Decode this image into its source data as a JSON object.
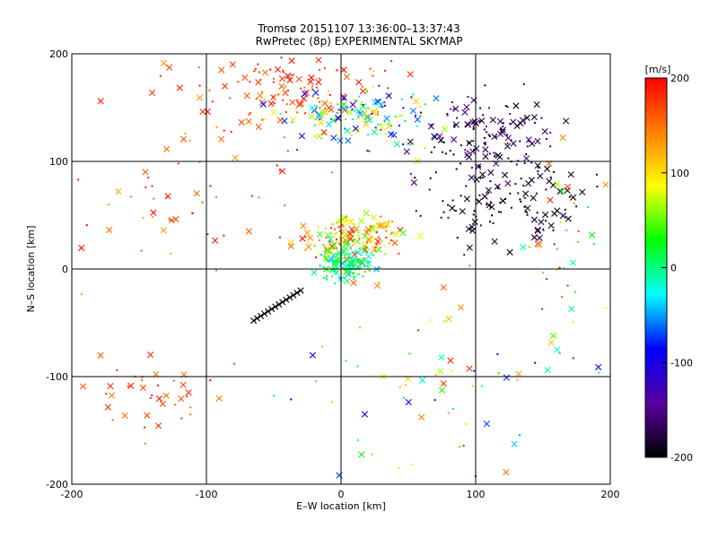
{
  "chart_data": {
    "type": "scatter",
    "title": "Tromsø 20151107 13:36:00–13:37:43",
    "subtitle": "RwPretec (8p) EXPERIMENTAL SKYMAP",
    "xlabel": "E–W location [km]",
    "ylabel": "N–S location [km]",
    "xlim": [
      -200,
      200
    ],
    "ylim": [
      -200,
      200
    ],
    "xticks": [
      -200,
      -100,
      0,
      100,
      200
    ],
    "yticks": [
      -200,
      -100,
      0,
      100,
      200
    ],
    "grid": true,
    "markers": {
      "small": "dot",
      "large": "x"
    },
    "colorbar": {
      "label": "[m/s]",
      "min": -200,
      "max": 200,
      "ticks": [
        -200,
        -100,
        0,
        100,
        200
      ],
      "colormap": [
        "#000000",
        "#5a00a0",
        "#0000ff",
        "#00ffff",
        "#00ff00",
        "#ffff00",
        "#ff8000",
        "#ff0000"
      ]
    },
    "clusters": [
      {
        "name": "",
        "center": [
          -40,
          165
        ],
        "spread": [
          60,
          25
        ],
        "velocity": [
          150,
          200
        ],
        "count": 110
      },
      {
        "name": "",
        "center": [
          20,
          140
        ],
        "spread": [
          50,
          25
        ],
        "velocity": [
          -120,
          120
        ],
        "count": 150
      },
      {
        "name": "",
        "center": [
          110,
          120
        ],
        "spread": [
          45,
          35
        ],
        "velocity": [
          -200,
          -140
        ],
        "count": 140
      },
      {
        "name": "",
        "center": [
          120,
          60
        ],
        "spread": [
          50,
          30
        ],
        "velocity": [
          -200,
          -170
        ],
        "count": 110
      },
      {
        "name": "",
        "center": [
          10,
          30
        ],
        "spread": [
          30,
          18
        ],
        "velocity": [
          40,
          200
        ],
        "count": 160
      },
      {
        "name": "",
        "center": [
          5,
          5
        ],
        "spread": [
          18,
          14
        ],
        "velocity": [
          -50,
          60
        ],
        "count": 140
      },
      {
        "name": "",
        "center": [
          -100,
          80
        ],
        "spread": [
          80,
          90
        ],
        "velocity": [
          120,
          200
        ],
        "count": 70
      },
      {
        "name": "",
        "center": [
          -140,
          -120
        ],
        "spread": [
          40,
          30
        ],
        "velocity": [
          140,
          200
        ],
        "count": 40
      },
      {
        "name": "",
        "center": [
          60,
          -110
        ],
        "spread": [
          100,
          70
        ],
        "velocity": [
          -100,
          200
        ],
        "count": 70
      },
      {
        "name": "",
        "center": [
          170,
          20
        ],
        "spread": [
          30,
          80
        ],
        "velocity": [
          -150,
          200
        ],
        "count": 40
      }
    ],
    "track": {
      "from": [
        -65,
        -48
      ],
      "to": [
        -30,
        -20
      ],
      "velocity": -200,
      "count": 14
    }
  }
}
